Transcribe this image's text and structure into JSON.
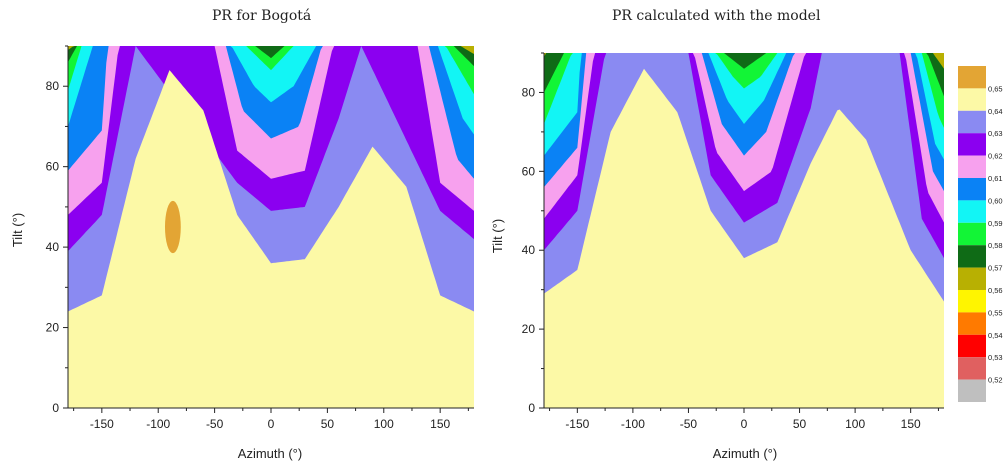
{
  "chart_data": [
    {
      "type": "heatmap",
      "title": "PR for Bogotá",
      "xlabel": "Azimuth (°)",
      "ylabel": "Tilt (°)",
      "xlim": [
        -180,
        180
      ],
      "ylim": [
        0,
        90
      ],
      "x_ticks": [
        -150,
        -100,
        -50,
        0,
        50,
        100,
        150
      ],
      "y_ticks": [
        0,
        20,
        40,
        60,
        80
      ],
      "contour_boundaries": [
        {
          "level": 0.645,
          "tilt_at_azimuth": [
            [
              -180,
              24
            ],
            [
              -150,
              28
            ],
            [
              -120,
              62
            ],
            [
              -90,
              84
            ],
            [
              -60,
              74
            ],
            [
              -30,
              48
            ],
            [
              0,
              36
            ],
            [
              30,
              37
            ],
            [
              60,
              50
            ],
            [
              90,
              65
            ],
            [
              120,
              55
            ],
            [
              150,
              28
            ],
            [
              180,
              24
            ]
          ]
        },
        {
          "level": 0.635,
          "tilt_at_azimuth": [
            [
              -180,
              39
            ],
            [
              -150,
              48
            ],
            [
              -120,
              90
            ],
            [
              -30,
              56
            ],
            [
              0,
              49
            ],
            [
              30,
              50
            ],
            [
              60,
              72
            ],
            [
              80,
              90
            ],
            [
              150,
              49
            ],
            [
              180,
              42
            ]
          ]
        },
        {
          "level": 0.625,
          "tilt_at_azimuth": [
            [
              -180,
              48
            ],
            [
              -150,
              56
            ],
            [
              -135,
              90
            ],
            [
              -50,
              90
            ],
            [
              -30,
              64
            ],
            [
              0,
              57
            ],
            [
              30,
              59
            ],
            [
              55,
              90
            ],
            [
              130,
              90
            ],
            [
              150,
              56
            ],
            [
              180,
              49
            ]
          ]
        },
        {
          "level": 0.615,
          "tilt_at_azimuth": [
            [
              -180,
              59
            ],
            [
              -150,
              69
            ],
            [
              -145,
              90
            ],
            [
              -40,
              90
            ],
            [
              -25,
              74
            ],
            [
              0,
              67
            ],
            [
              25,
              70
            ],
            [
              45,
              90
            ],
            [
              140,
              90
            ],
            [
              165,
              62
            ],
            [
              180,
              57
            ]
          ]
        },
        {
          "level": 0.605,
          "tilt_at_azimuth": [
            [
              -180,
              70
            ],
            [
              -158,
              90
            ],
            [
              -35,
              90
            ],
            [
              -15,
              80
            ],
            [
              0,
              76
            ],
            [
              20,
              80
            ],
            [
              40,
              90
            ],
            [
              148,
              90
            ],
            [
              170,
              72
            ],
            [
              180,
              68
            ]
          ]
        },
        {
          "level": 0.595,
          "tilt_at_azimuth": [
            [
              -180,
              79
            ],
            [
              -168,
              90
            ],
            [
              -22,
              90
            ],
            [
              0,
              84
            ],
            [
              20,
              90
            ],
            [
              155,
              90
            ],
            [
              180,
              78
            ]
          ]
        },
        {
          "level": 0.585,
          "tilt_at_azimuth": [
            [
              -180,
              86
            ],
            [
              -172,
              90
            ],
            [
              -14,
              90
            ],
            [
              0,
              87
            ],
            [
              12,
              90
            ],
            [
              162,
              90
            ],
            [
              180,
              85
            ]
          ]
        },
        {
          "level": 0.575,
          "tilt_at_azimuth": [
            [
              -180,
              89
            ],
            [
              -175,
              90
            ],
            [
              168,
              90
            ],
            [
              180,
              88
            ]
          ]
        }
      ],
      "extra_region": {
        "level": 0.655,
        "color": "#E3A534",
        "center": [
          -87,
          45
        ],
        "half_width_azimuth": 7,
        "half_height_tilt": 6.5
      }
    },
    {
      "type": "heatmap",
      "title": "PR calculated with the model",
      "xlabel": "Azimuth (°)",
      "ylabel": "Tilt (°)",
      "xlim": [
        -180,
        180
      ],
      "ylim": [
        0,
        90
      ],
      "x_ticks": [
        -150,
        -100,
        -50,
        0,
        50,
        100,
        150
      ],
      "y_ticks": [
        0,
        20,
        40,
        60,
        80
      ],
      "contour_boundaries": [
        {
          "level": 0.645,
          "tilt_at_azimuth": [
            [
              -180,
              29
            ],
            [
              -150,
              35
            ],
            [
              -120,
              70
            ],
            [
              -90,
              86
            ],
            [
              -60,
              75
            ],
            [
              -30,
              50
            ],
            [
              0,
              38
            ],
            [
              30,
              42
            ],
            [
              60,
              62
            ],
            [
              85,
              76
            ],
            [
              110,
              68
            ],
            [
              150,
              40
            ],
            [
              180,
              27
            ]
          ]
        },
        {
          "level": 0.635,
          "tilt_at_azimuth": [
            [
              -180,
              40
            ],
            [
              -150,
              50
            ],
            [
              -125,
              90
            ],
            [
              -50,
              90
            ],
            [
              -30,
              59
            ],
            [
              0,
              47
            ],
            [
              30,
              52
            ],
            [
              60,
              76
            ],
            [
              70,
              90
            ],
            [
              140,
              90
            ],
            [
              160,
              48
            ],
            [
              180,
              38
            ]
          ]
        },
        {
          "level": 0.625,
          "tilt_at_azimuth": [
            [
              -180,
              48
            ],
            [
              -150,
              59
            ],
            [
              -135,
              90
            ],
            [
              -45,
              90
            ],
            [
              -25,
              65
            ],
            [
              0,
              55
            ],
            [
              25,
              60
            ],
            [
              55,
              90
            ],
            [
              145,
              90
            ],
            [
              165,
              55
            ],
            [
              180,
              47
            ]
          ]
        },
        {
          "level": 0.615,
          "tilt_at_azimuth": [
            [
              -180,
              56
            ],
            [
              -150,
              66
            ],
            [
              -142,
              90
            ],
            [
              -38,
              90
            ],
            [
              -20,
              72
            ],
            [
              0,
              64
            ],
            [
              20,
              70
            ],
            [
              45,
              90
            ],
            [
              150,
              90
            ],
            [
              170,
              60
            ],
            [
              180,
              55
            ]
          ]
        },
        {
          "level": 0.605,
          "tilt_at_azimuth": [
            [
              -180,
              64
            ],
            [
              -150,
              75
            ],
            [
              -147,
              90
            ],
            [
              -32,
              90
            ],
            [
              -15,
              78
            ],
            [
              0,
              72
            ],
            [
              18,
              78
            ],
            [
              38,
              90
            ],
            [
              155,
              90
            ],
            [
              172,
              67
            ],
            [
              180,
              63
            ]
          ]
        },
        {
          "level": 0.595,
          "tilt_at_azimuth": [
            [
              -180,
              72
            ],
            [
              -155,
              90
            ],
            [
              -25,
              90
            ],
            [
              -10,
              84
            ],
            [
              0,
              81
            ],
            [
              15,
              84
            ],
            [
              30,
              90
            ],
            [
              160,
              90
            ],
            [
              175,
              74
            ],
            [
              180,
              71
            ]
          ]
        },
        {
          "level": 0.585,
          "tilt_at_azimuth": [
            [
              -180,
              80
            ],
            [
              -162,
              90
            ],
            [
              -18,
              90
            ],
            [
              0,
              86
            ],
            [
              20,
              90
            ],
            [
              165,
              90
            ],
            [
              180,
              79
            ]
          ]
        },
        {
          "level": 0.575,
          "tilt_at_azimuth": [
            [
              -180,
              89
            ],
            [
              -178,
              90
            ],
            [
              170,
              90
            ],
            [
              180,
              86
            ]
          ]
        }
      ],
      "extra_region": null
    }
  ],
  "colorbar": {
    "levels": [
      {
        "label": "0,65",
        "color": "#E3A534"
      },
      {
        "label": "0,64",
        "color": "#FCF9A6"
      },
      {
        "label": "0,63",
        "color": "#8A8AF2"
      },
      {
        "label": "0,62",
        "color": "#8B00F0"
      },
      {
        "label": "0,61",
        "color": "#F7A1EE"
      },
      {
        "label": "0,60",
        "color": "#0A82F5"
      },
      {
        "label": "0,59",
        "color": "#12F5F5"
      },
      {
        "label": "0,58",
        "color": "#12F536"
      },
      {
        "label": "0,57",
        "color": "#0F6B16"
      },
      {
        "label": "0,56",
        "color": "#B8B002"
      },
      {
        "label": "0,55",
        "color": "#FFF500"
      },
      {
        "label": "0,54",
        "color": "#FF7A00"
      },
      {
        "label": "0,53",
        "color": "#FF0000"
      },
      {
        "label": "0,52",
        "color": "#E06060"
      },
      {
        "label": "",
        "color": "#BFBFBF"
      }
    ]
  },
  "fill_colors": {
    "0.645": "#FCF9A6",
    "0.635": "#8A8AF2",
    "0.625": "#8B00F0",
    "0.615": "#F7A1EE",
    "0.605": "#0A82F5",
    "0.595": "#12F5F5",
    "0.585": "#12F536",
    "0.575": "#0F6B16",
    "top": "#B8B002"
  }
}
